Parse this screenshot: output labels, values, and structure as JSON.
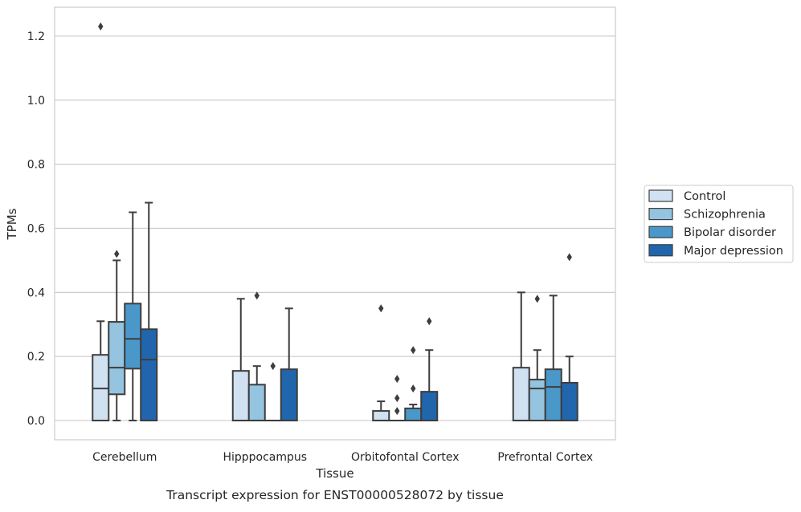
{
  "chart_data": {
    "type": "box",
    "caption": "Transcript expression for ENST00000528072 by tissue",
    "xlabel": "Tissue",
    "ylabel": "TPMs",
    "ylim": [
      -0.06,
      1.29
    ],
    "yticks": [
      0.0,
      0.2,
      0.4,
      0.6,
      0.8,
      1.0,
      1.2
    ],
    "ytick_labels": [
      "0.0",
      "0.2",
      "0.4",
      "0.6",
      "0.8",
      "1.0",
      "1.2"
    ],
    "categories": [
      "Cerebellum",
      "Hipppocampus",
      "Orbitofontal Cortex",
      "Prefrontal Cortex"
    ],
    "grid": "horizontal",
    "legend_position": "right",
    "series": [
      {
        "name": "Control",
        "color": "#d0e1f2",
        "boxes": [
          {
            "q1": 0.0,
            "median": 0.1,
            "q3": 0.205,
            "whisker_low": 0.0,
            "whisker_high": 0.31,
            "outliers": [
              1.23
            ]
          },
          {
            "q1": 0.0,
            "median": 0.0,
            "q3": 0.155,
            "whisker_low": 0.0,
            "whisker_high": 0.38,
            "outliers": []
          },
          {
            "q1": 0.0,
            "median": 0.0,
            "q3": 0.03,
            "whisker_low": 0.0,
            "whisker_high": 0.06,
            "outliers": [
              0.35
            ]
          },
          {
            "q1": 0.0,
            "median": 0.0,
            "q3": 0.165,
            "whisker_low": 0.0,
            "whisker_high": 0.4,
            "outliers": []
          }
        ]
      },
      {
        "name": "Schizophrenia",
        "color": "#94c4df",
        "boxes": [
          {
            "q1": 0.082,
            "median": 0.165,
            "q3": 0.308,
            "whisker_low": 0.0,
            "whisker_high": 0.5,
            "outliers": [
              0.52
            ]
          },
          {
            "q1": 0.0,
            "median": 0.0,
            "q3": 0.112,
            "whisker_low": 0.0,
            "whisker_high": 0.17,
            "outliers": [
              0.39
            ]
          },
          {
            "q1": 0.0,
            "median": 0.0,
            "q3": 0.0,
            "whisker_low": 0.0,
            "whisker_high": 0.0,
            "outliers": [
              0.03,
              0.07,
              0.13
            ]
          },
          {
            "q1": 0.0,
            "median": 0.1,
            "q3": 0.128,
            "whisker_low": 0.0,
            "whisker_high": 0.22,
            "outliers": [
              0.38
            ]
          }
        ]
      },
      {
        "name": "Bipolar disorder",
        "color": "#4a98c9",
        "boxes": [
          {
            "q1": 0.162,
            "median": 0.255,
            "q3": 0.365,
            "whisker_low": 0.0,
            "whisker_high": 0.65,
            "outliers": []
          },
          {
            "q1": 0.0,
            "median": 0.0,
            "q3": 0.0,
            "whisker_low": 0.0,
            "whisker_high": 0.0,
            "outliers": [
              0.17
            ]
          },
          {
            "q1": 0.0,
            "median": 0.0,
            "q3": 0.038,
            "whisker_low": 0.0,
            "whisker_high": 0.05,
            "outliers": [
              0.1,
              0.22
            ]
          },
          {
            "q1": 0.0,
            "median": 0.105,
            "q3": 0.16,
            "whisker_low": 0.0,
            "whisker_high": 0.39,
            "outliers": []
          }
        ]
      },
      {
        "name": "Major depression",
        "color": "#2166ac",
        "boxes": [
          {
            "q1": 0.0,
            "median": 0.19,
            "q3": 0.285,
            "whisker_low": 0.0,
            "whisker_high": 0.68,
            "outliers": []
          },
          {
            "q1": 0.0,
            "median": 0.0,
            "q3": 0.16,
            "whisker_low": 0.0,
            "whisker_high": 0.35,
            "outliers": []
          },
          {
            "q1": 0.0,
            "median": 0.0,
            "q3": 0.09,
            "whisker_low": 0.0,
            "whisker_high": 0.22,
            "outliers": [
              0.31
            ]
          },
          {
            "q1": 0.0,
            "median": 0.0,
            "q3": 0.118,
            "whisker_low": 0.0,
            "whisker_high": 0.2,
            "outliers": [
              0.51
            ]
          }
        ]
      }
    ]
  }
}
